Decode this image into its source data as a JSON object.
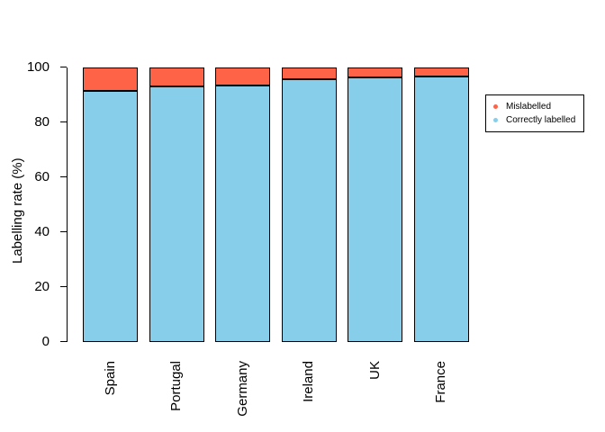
{
  "chart_data": {
    "type": "bar",
    "stacked": true,
    "title": "",
    "xlabel": "",
    "ylabel": "Labelling rate (%)",
    "ylim": [
      0,
      100
    ],
    "yticks": [
      0,
      20,
      40,
      60,
      80,
      100
    ],
    "grid": false,
    "legend_position": "right",
    "background": "#FFFFFF",
    "bar_border_color": "#000000",
    "categories": [
      "Spain",
      "Portugal",
      "Germany",
      "Ireland",
      "UK",
      "France"
    ],
    "series": [
      {
        "name": "Mislabelled",
        "color": "#FF6347",
        "values": [
          8.6,
          6.8,
          6.5,
          4.3,
          3.5,
          3.2
        ]
      },
      {
        "name": "Correctly labelled",
        "color": "#87CEEB",
        "values": [
          91.4,
          93.2,
          93.5,
          95.7,
          96.5,
          96.8
        ]
      }
    ]
  }
}
